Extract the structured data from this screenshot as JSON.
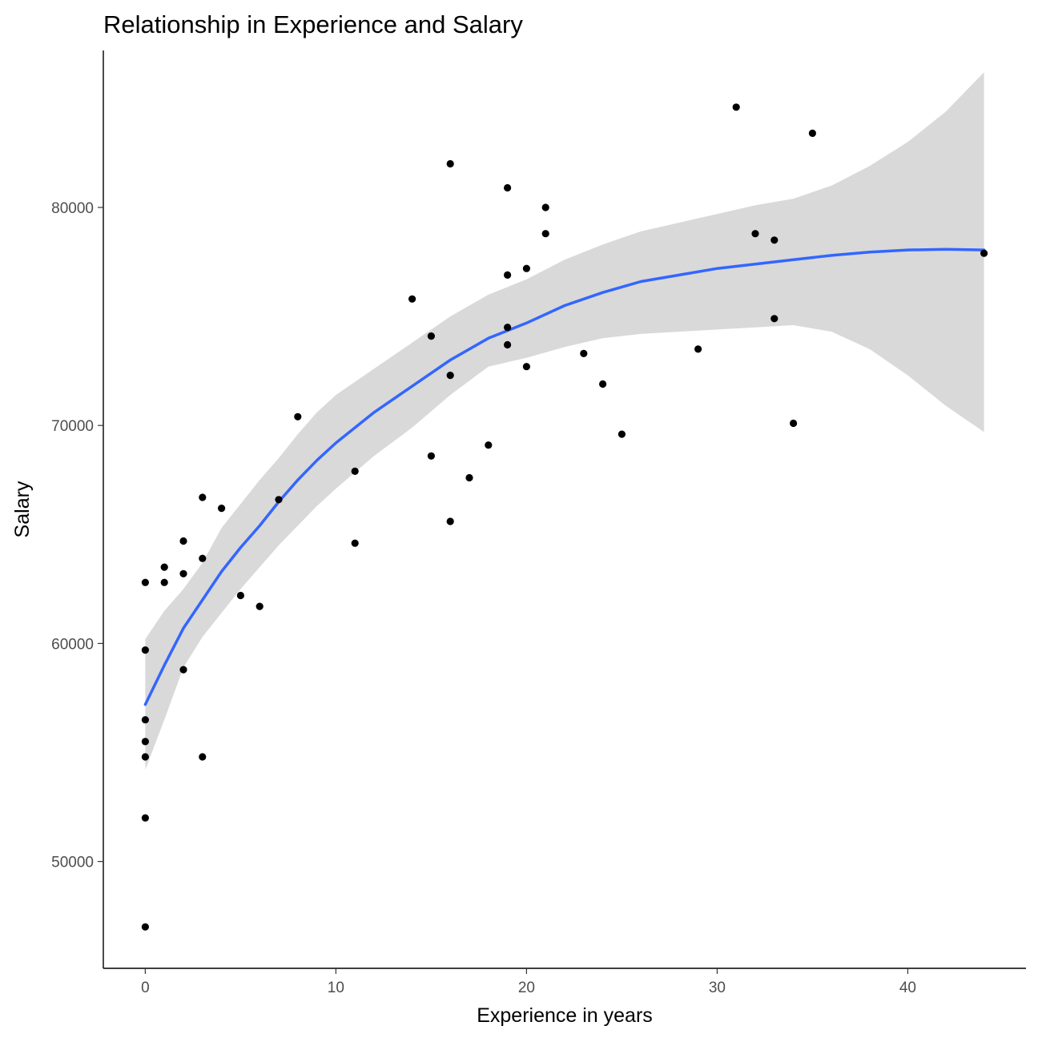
{
  "chart_data": {
    "type": "scatter",
    "title": "Relationship in Experience and Salary",
    "xlabel": "Experience in years",
    "ylabel": "Salary",
    "xlim": [
      -2.2,
      46.2
    ],
    "ylim": [
      45100,
      87200
    ],
    "x_ticks": [
      0,
      10,
      20,
      30,
      40
    ],
    "y_ticks": [
      50000,
      60000,
      70000,
      80000
    ],
    "x_tick_labels": [
      "0",
      "10",
      "20",
      "30",
      "40"
    ],
    "y_tick_labels": [
      "50000",
      "60000",
      "70000",
      "80000"
    ],
    "grid": false,
    "legend": "none",
    "colors": {
      "points": "#000000",
      "smooth_line": "#3366ff",
      "confidence_band": "#d9d9d9"
    },
    "points": [
      {
        "x": 0,
        "y": 62800
      },
      {
        "x": 0,
        "y": 59700
      },
      {
        "x": 0,
        "y": 56500
      },
      {
        "x": 0,
        "y": 55500
      },
      {
        "x": 0,
        "y": 54800
      },
      {
        "x": 0,
        "y": 52000
      },
      {
        "x": 0,
        "y": 47000
      },
      {
        "x": 1,
        "y": 63500
      },
      {
        "x": 1,
        "y": 62800
      },
      {
        "x": 2,
        "y": 64700
      },
      {
        "x": 2,
        "y": 63200
      },
      {
        "x": 2,
        "y": 58800
      },
      {
        "x": 3,
        "y": 66700
      },
      {
        "x": 3,
        "y": 63900
      },
      {
        "x": 3,
        "y": 54800
      },
      {
        "x": 4,
        "y": 66200
      },
      {
        "x": 5,
        "y": 62200
      },
      {
        "x": 6,
        "y": 61700
      },
      {
        "x": 7,
        "y": 66600
      },
      {
        "x": 8,
        "y": 70400
      },
      {
        "x": 11,
        "y": 67900
      },
      {
        "x": 11,
        "y": 64600
      },
      {
        "x": 14,
        "y": 75800
      },
      {
        "x": 15,
        "y": 74100
      },
      {
        "x": 15,
        "y": 68600
      },
      {
        "x": 16,
        "y": 82000
      },
      {
        "x": 16,
        "y": 72300
      },
      {
        "x": 16,
        "y": 65600
      },
      {
        "x": 17,
        "y": 67600
      },
      {
        "x": 18,
        "y": 69100
      },
      {
        "x": 19,
        "y": 80900
      },
      {
        "x": 19,
        "y": 76900
      },
      {
        "x": 19,
        "y": 74500
      },
      {
        "x": 19,
        "y": 73700
      },
      {
        "x": 20,
        "y": 77200
      },
      {
        "x": 20,
        "y": 72700
      },
      {
        "x": 21,
        "y": 80000
      },
      {
        "x": 21,
        "y": 78800
      },
      {
        "x": 23,
        "y": 73300
      },
      {
        "x": 24,
        "y": 71900
      },
      {
        "x": 25,
        "y": 69600
      },
      {
        "x": 29,
        "y": 73500
      },
      {
        "x": 31,
        "y": 84600
      },
      {
        "x": 32,
        "y": 78800
      },
      {
        "x": 33,
        "y": 78500
      },
      {
        "x": 33,
        "y": 74900
      },
      {
        "x": 34,
        "y": 70100
      },
      {
        "x": 35,
        "y": 83400
      },
      {
        "x": 44,
        "y": 77900
      }
    ],
    "smooth_series": {
      "name": "",
      "x": [
        0,
        1,
        2,
        3,
        4,
        5,
        6,
        7,
        8,
        9,
        10,
        12,
        14,
        16,
        18,
        20,
        22,
        24,
        26,
        28,
        30,
        32,
        34,
        36,
        38,
        40,
        42,
        44
      ],
      "y": [
        57200,
        59000,
        60700,
        62000,
        63300,
        64400,
        65400,
        66500,
        67500,
        68400,
        69200,
        70600,
        71800,
        73000,
        74000,
        74700,
        75500,
        76100,
        76600,
        76900,
        77200,
        77400,
        77600,
        77800,
        77950,
        78050,
        78080,
        78050
      ],
      "ci_lower": [
        54200,
        56500,
        58900,
        60300,
        61400,
        62500,
        63500,
        64500,
        65400,
        66300,
        67100,
        68600,
        69900,
        71400,
        72700,
        73100,
        73600,
        74000,
        74200,
        74300,
        74400,
        74500,
        74600,
        74300,
        73500,
        72300,
        70900,
        69700
      ],
      "ci_upper": [
        60200,
        61500,
        62500,
        63700,
        65300,
        66400,
        67500,
        68500,
        69600,
        70600,
        71400,
        72600,
        73800,
        75000,
        76000,
        76700,
        77600,
        78300,
        78900,
        79300,
        79700,
        80100,
        80400,
        81000,
        81900,
        83000,
        84400,
        86200
      ]
    }
  }
}
